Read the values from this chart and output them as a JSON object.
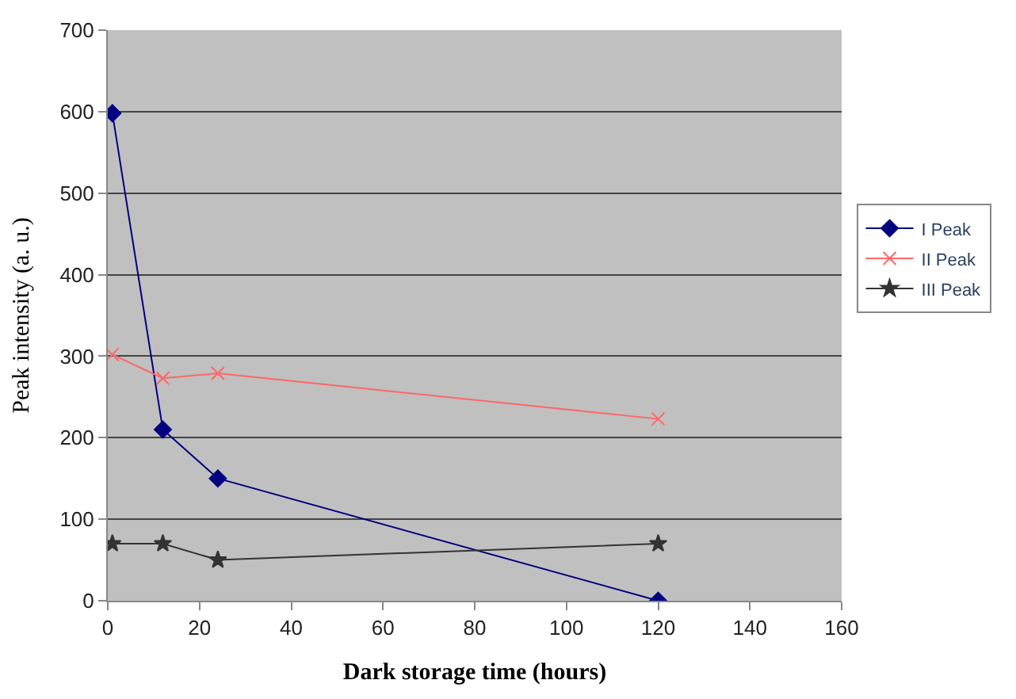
{
  "chart_data": {
    "type": "line",
    "xlabel": "Dark storage time (hours)",
    "ylabel": "Peak intensity (a. u.)",
    "x": [
      1,
      12,
      24,
      120
    ],
    "series": [
      {
        "name": "I Peak",
        "color": "#000080",
        "marker": "diamond",
        "values": [
          598,
          210,
          150,
          0
        ]
      },
      {
        "name": "II Peak",
        "color": "#ff6666",
        "marker": "cross",
        "values": [
          302,
          273,
          279,
          223
        ]
      },
      {
        "name": "III Peak",
        "color": "#333333",
        "marker": "star",
        "values": [
          70,
          70,
          50,
          70
        ]
      }
    ],
    "xlim": [
      0,
      160
    ],
    "xticks": [
      0,
      20,
      40,
      60,
      80,
      100,
      120,
      140,
      160
    ],
    "ylim": [
      0,
      700
    ],
    "yticks": [
      0,
      100,
      200,
      300,
      400,
      500,
      600,
      700
    ],
    "grid": "y",
    "legend": "right",
    "line_style": "solid"
  }
}
